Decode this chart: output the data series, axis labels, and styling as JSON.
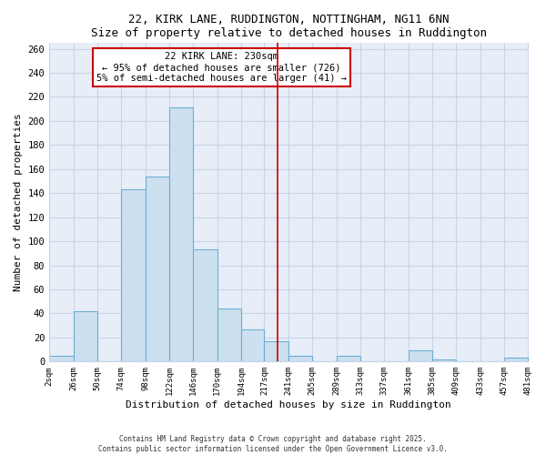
{
  "title": "22, KIRK LANE, RUDDINGTON, NOTTINGHAM, NG11 6NN",
  "subtitle": "Size of property relative to detached houses in Ruddington",
  "xlabel": "Distribution of detached houses by size in Ruddington",
  "ylabel": "Number of detached properties",
  "bar_edges": [
    2,
    26,
    50,
    74,
    98,
    122,
    146,
    170,
    194,
    217,
    241,
    265,
    289,
    313,
    337,
    361,
    385,
    409,
    433,
    457,
    481
  ],
  "bar_heights": [
    5,
    42,
    0,
    143,
    154,
    211,
    93,
    44,
    27,
    17,
    5,
    0,
    5,
    0,
    0,
    9,
    2,
    0,
    0,
    3
  ],
  "bar_color": "#cce0ef",
  "bar_edge_color": "#6ab0d4",
  "vline_x": 230,
  "vline_color": "#cc0000",
  "annotation_title": "22 KIRK LANE: 230sqm",
  "annotation_line1": "← 95% of detached houses are smaller (726)",
  "annotation_line2": "5% of semi-detached houses are larger (41) →",
  "annotation_box_color": "white",
  "annotation_border_color": "#cc0000",
  "ylim": [
    0,
    265
  ],
  "yticks": [
    0,
    20,
    40,
    60,
    80,
    100,
    120,
    140,
    160,
    180,
    200,
    220,
    240,
    260
  ],
  "background_color": "#e8eef8",
  "grid_color": "#c8d4e8",
  "footer_line1": "Contains HM Land Registry data © Crown copyright and database right 2025.",
  "footer_line2": "Contains public sector information licensed under the Open Government Licence v3.0.",
  "tick_labels": [
    "2sqm",
    "26sqm",
    "50sqm",
    "74sqm",
    "98sqm",
    "122sqm",
    "146sqm",
    "170sqm",
    "194sqm",
    "217sqm",
    "241sqm",
    "265sqm",
    "289sqm",
    "313sqm",
    "337sqm",
    "361sqm",
    "385sqm",
    "409sqm",
    "433sqm",
    "457sqm",
    "481sqm"
  ]
}
